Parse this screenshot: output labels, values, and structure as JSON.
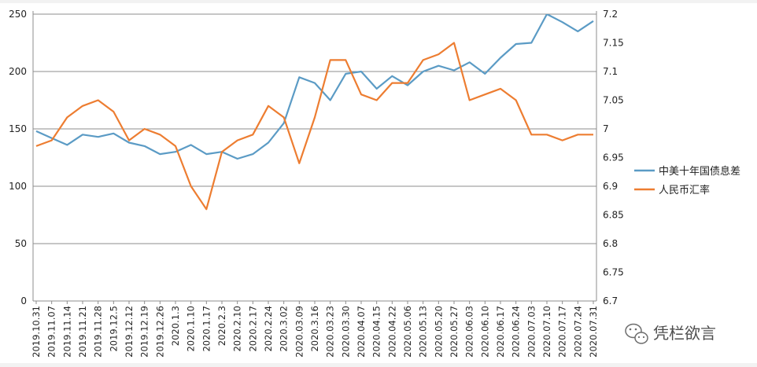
{
  "chart_data": {
    "type": "line",
    "title": "",
    "x": [
      "2019.10.31",
      "2019.11.07",
      "2019.11.14",
      "2019.11.21",
      "2019.11.28",
      "2019.12.5",
      "2019.12.12",
      "2019.12.19",
      "2019.12.26",
      "2020.1.3",
      "2020.1.10",
      "2020.1.17",
      "2020.2.3",
      "2020.2.10",
      "2020.2.17",
      "2020.2.24",
      "2020.3.02",
      "2020.03.09",
      "2020.3.16",
      "2020.03.23",
      "2020.03.30",
      "2020.04.07",
      "2020.04.15",
      "2020.04.22",
      "2020.05.06",
      "2020.05.13",
      "2020.05.20",
      "2020.05.27",
      "2020.06.03",
      "2020.06.10",
      "2020.06.17",
      "2020.06.24",
      "2020.07.03",
      "2020.07.10",
      "2020.07.17",
      "2020.07.24",
      "2020.07.31"
    ],
    "left_axis": {
      "ylim": [
        0,
        250
      ],
      "ticks": [
        0,
        50,
        100,
        150,
        200,
        250
      ]
    },
    "right_axis": {
      "ylim": [
        6.7,
        7.2
      ],
      "ticks": [
        "6.7",
        "6.75",
        "6.8",
        "6.85",
        "6.9",
        "6.95",
        "7",
        "7.05",
        "7.1",
        "7.15",
        "7.2"
      ]
    },
    "gridlines": [
      0,
      50,
      100,
      150,
      200,
      250
    ],
    "legend_position": "right",
    "series": [
      {
        "name": "中美十年国债息差",
        "axis": "left",
        "color": "#5b9bc5",
        "values": [
          148,
          142,
          136,
          145,
          143,
          146,
          138,
          135,
          128,
          130,
          136,
          128,
          130,
          124,
          128,
          138,
          155,
          195,
          190,
          175,
          198,
          200,
          185,
          196,
          188,
          200,
          205,
          201,
          208,
          198,
          212,
          224,
          225,
          250,
          243,
          235,
          244
        ]
      },
      {
        "name": "人民币汇率",
        "axis": "right",
        "color": "#ed7d31",
        "values": [
          6.97,
          6.98,
          7.02,
          7.04,
          7.05,
          7.03,
          6.98,
          7.0,
          6.99,
          6.97,
          6.9,
          6.86,
          6.96,
          6.98,
          6.99,
          7.04,
          7.02,
          6.94,
          7.02,
          7.12,
          7.12,
          7.06,
          7.05,
          7.08,
          7.08,
          7.12,
          7.13,
          7.15,
          7.05,
          7.06,
          7.07,
          7.05,
          6.99,
          6.99,
          6.98,
          6.99,
          6.99
        ]
      }
    ]
  },
  "watermark": {
    "text": "凭栏欲言",
    "icon": "wechat-icon"
  }
}
